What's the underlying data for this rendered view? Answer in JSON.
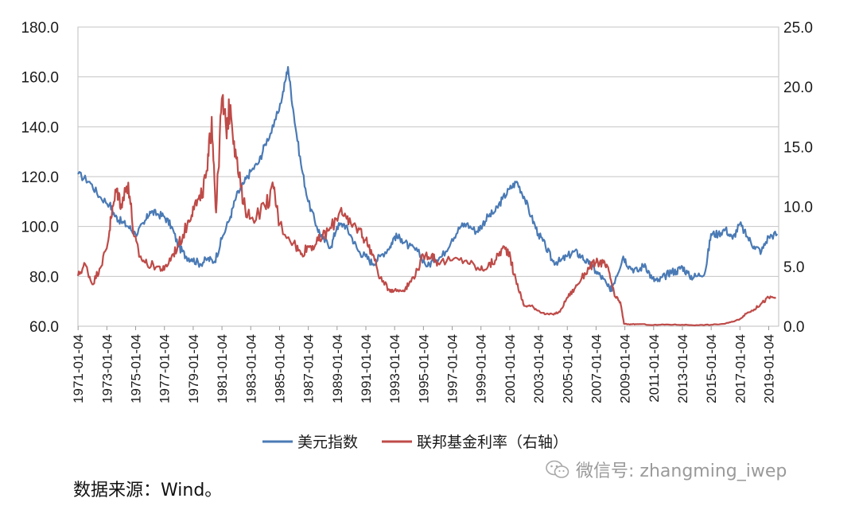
{
  "chart_data": {
    "type": "line",
    "title": "",
    "xlabel": "",
    "ylabel_left": "",
    "ylabel_right": "",
    "categories": [
      "1971-01-04",
      "1973-01-04",
      "1975-01-04",
      "1977-01-04",
      "1979-01-04",
      "1981-01-04",
      "1983-01-04",
      "1985-01-04",
      "1987-01-04",
      "1989-01-04",
      "1991-01-04",
      "1993-01-04",
      "1995-01-04",
      "1997-01-04",
      "1999-01-04",
      "2001-01-04",
      "2003-01-04",
      "2005-01-04",
      "2007-01-04",
      "2009-01-04",
      "2011-01-04",
      "2013-01-04",
      "2015-01-04",
      "2017-01-04",
      "2019-01-04"
    ],
    "ylim_left": [
      60,
      180
    ],
    "ylim_right": [
      0,
      25
    ],
    "yticks_left": [
      "60.0",
      "80.0",
      "100.0",
      "120.0",
      "140.0",
      "160.0",
      "180.0"
    ],
    "yticks_right": [
      "0.0",
      "5.0",
      "10.0",
      "15.0",
      "20.0",
      "25.0"
    ],
    "grid": true,
    "legend_position": "bottom",
    "series": [
      {
        "name": "美元指数",
        "axis": "left",
        "color": "#4a7ab5",
        "x": [
          1971.0,
          1971.8,
          1972.5,
          1973.2,
          1973.6,
          1974.0,
          1974.5,
          1975.0,
          1975.6,
          1976.0,
          1976.5,
          1977.0,
          1977.5,
          1978.0,
          1978.5,
          1978.9,
          1979.5,
          1980.0,
          1980.5,
          1981.0,
          1981.6,
          1982.0,
          1982.5,
          1983.0,
          1983.6,
          1984.0,
          1984.6,
          1985.2,
          1985.6,
          1986.0,
          1986.5,
          1987.0,
          1987.6,
          1988.0,
          1988.6,
          1989.0,
          1989.5,
          1990.0,
          1990.5,
          1991.0,
          1991.5,
          1992.0,
          1992.7,
          1993.0,
          1993.5,
          1994.0,
          1994.6,
          1995.3,
          1995.8,
          1996.3,
          1997.0,
          1997.6,
          1998.0,
          1998.7,
          1999.0,
          1999.5,
          2000.0,
          2000.5,
          2001.0,
          2001.5,
          2002.0,
          2002.5,
          2003.0,
          2003.5,
          2004.0,
          2004.5,
          2005.0,
          2005.5,
          2006.0,
          2006.5,
          2007.0,
          2007.5,
          2008.0,
          2008.4,
          2008.9,
          2009.3,
          2009.9,
          2010.4,
          2010.9,
          2011.3,
          2011.8,
          2012.2,
          2012.6,
          2013.0,
          2013.5,
          2014.0,
          2014.6,
          2015.0,
          2015.5,
          2016.0,
          2016.5,
          2017.0,
          2017.5,
          2018.0,
          2018.5,
          2019.0,
          2019.6
        ],
        "values": [
          121,
          118,
          112,
          109,
          104,
          102,
          100,
          97,
          101,
          106,
          105,
          104,
          100,
          92,
          88,
          87,
          85,
          87,
          86,
          95,
          104,
          112,
          117,
          122,
          126,
          133,
          140,
          152,
          164,
          145,
          125,
          110,
          100,
          95,
          92,
          100,
          101,
          96,
          90,
          88,
          85,
          88,
          92,
          96,
          95,
          92,
          90,
          84,
          87,
          88,
          95,
          100,
          101,
          98,
          100,
          104,
          106,
          111,
          115,
          118,
          112,
          104,
          97,
          92,
          86,
          86,
          88,
          90,
          88,
          85,
          82,
          79,
          74,
          80,
          88,
          84,
          82,
          85,
          79,
          78,
          80,
          82,
          82,
          84,
          80,
          80,
          82,
          97,
          97,
          99,
          95,
          101,
          96,
          92,
          90,
          96,
          97
        ]
      },
      {
        "name": "联邦基金利率（右轴）",
        "axis": "right",
        "color": "#be4b48",
        "x": [
          1971.0,
          1971.5,
          1972.0,
          1972.5,
          1973.0,
          1973.3,
          1973.7,
          1974.0,
          1974.5,
          1974.9,
          1975.3,
          1975.8,
          1976.5,
          1977.0,
          1977.5,
          1978.0,
          1978.6,
          1979.0,
          1979.5,
          1980.0,
          1980.3,
          1980.6,
          1981.0,
          1981.3,
          1981.6,
          1982.0,
          1982.5,
          1983.0,
          1984.0,
          1984.6,
          1985.0,
          1986.0,
          1986.5,
          1987.0,
          1987.5,
          1988.0,
          1988.6,
          1989.3,
          1989.8,
          1990.5,
          1991.0,
          1991.5,
          1992.0,
          1992.6,
          1993.0,
          1993.6,
          1994.0,
          1994.6,
          1995.0,
          1995.6,
          1996.0,
          1997.0,
          1998.0,
          1998.9,
          1999.5,
          2000.0,
          2000.5,
          2001.0,
          2001.3,
          2001.8,
          2002.0,
          2002.5,
          2003.0,
          2003.5,
          2004.0,
          2004.5,
          2005.0,
          2005.5,
          2006.0,
          2006.6,
          2007.0,
          2007.5,
          2007.9,
          2008.3,
          2008.7,
          2008.95,
          2009.5,
          2010.0,
          2011.0,
          2012.0,
          2013.0,
          2014.0,
          2015.0,
          2015.9,
          2016.5,
          2017.0,
          2017.5,
          2018.0,
          2018.5,
          2019.0,
          2019.5
        ],
        "values": [
          4.2,
          5.2,
          3.5,
          4.8,
          6.5,
          9.0,
          11.5,
          10.2,
          12.0,
          7.5,
          5.8,
          5.2,
          5.0,
          4.7,
          5.8,
          6.8,
          8.5,
          10.0,
          10.5,
          13.0,
          17.5,
          9.5,
          19.0,
          16.5,
          18.5,
          14.0,
          10.2,
          9.0,
          10.0,
          11.5,
          8.5,
          7.0,
          6.0,
          6.7,
          6.8,
          7.5,
          8.2,
          9.9,
          8.5,
          8.2,
          7.2,
          6.0,
          4.0,
          3.1,
          3.0,
          3.0,
          3.5,
          4.7,
          5.9,
          6.0,
          5.3,
          5.5,
          5.5,
          4.7,
          5.0,
          5.5,
          6.5,
          6.2,
          4.3,
          2.5,
          1.7,
          1.7,
          1.3,
          1.0,
          1.0,
          1.2,
          2.4,
          3.1,
          4.0,
          5.0,
          5.3,
          5.3,
          4.6,
          2.5,
          2.0,
          0.2,
          0.15,
          0.18,
          0.1,
          0.14,
          0.12,
          0.09,
          0.12,
          0.2,
          0.37,
          0.6,
          1.1,
          1.4,
          1.9,
          2.4,
          2.4
        ]
      }
    ]
  },
  "legend": {
    "usd_label": "美元指数",
    "ffr_label": "联邦基金利率（右轴）"
  },
  "source_note": "数据来源：Wind。",
  "watermark": "微信号: zhangming_iwep"
}
